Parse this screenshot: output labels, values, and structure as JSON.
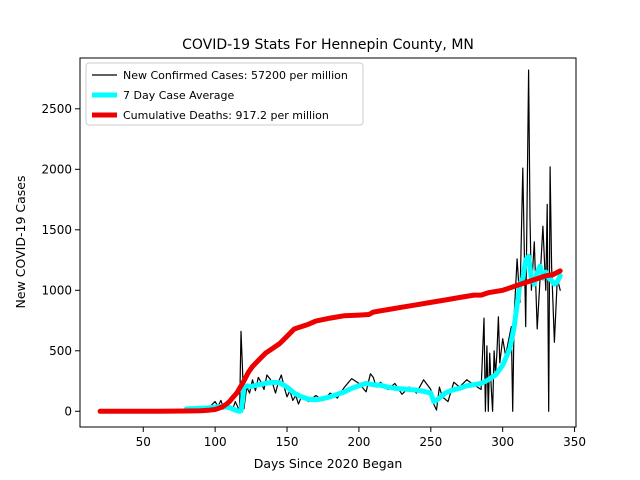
{
  "chart_data": {
    "type": "line",
    "title": "COVID-19 Stats For Hennepin County, MN",
    "xlabel": "Days Since 2020 Began",
    "ylabel": "New COVID-19 Cases",
    "xlim": [
      6,
      351
    ],
    "ylim": [
      -130,
      2920
    ],
    "xticks": [
      50,
      100,
      150,
      200,
      250,
      300,
      350
    ],
    "yticks": [
      0,
      500,
      1000,
      1500,
      2000,
      2500
    ],
    "grid": false,
    "legend_position": "top-left",
    "colors": {
      "new_cases": "#000000",
      "avg": "#00ffff",
      "deaths": "#ee0000"
    },
    "legend": [
      {
        "key": "new_cases",
        "label": "New Confirmed Cases: 57200 per million"
      },
      {
        "key": "avg",
        "label": "7 Day Case Average"
      },
      {
        "key": "deaths",
        "label": "Cumulative Deaths: 917.2 per million"
      }
    ],
    "series": [
      {
        "key": "new_cases",
        "x": [
          80,
          84,
          88,
          92,
          96,
          100,
          102,
          104,
          106,
          108,
          110,
          112,
          114,
          116,
          117,
          118,
          119,
          120,
          122,
          124,
          126,
          128,
          130,
          132,
          134,
          136,
          138,
          140,
          142,
          144,
          146,
          148,
          150,
          152,
          154,
          156,
          158,
          160,
          165,
          170,
          175,
          180,
          185,
          190,
          195,
          200,
          205,
          208,
          210,
          212,
          215,
          220,
          225,
          230,
          235,
          240,
          245,
          250,
          252,
          254,
          256,
          258,
          262,
          266,
          270,
          275,
          280,
          285,
          287,
          288,
          289,
          290,
          291,
          292,
          293,
          294,
          295,
          296,
          297,
          298,
          300,
          302,
          304,
          306,
          307,
          308,
          310,
          312,
          314,
          316,
          318,
          319,
          320,
          322,
          324,
          326,
          328,
          330,
          331,
          332,
          333,
          334,
          336,
          338,
          340
        ],
        "y": [
          20,
          18,
          22,
          30,
          35,
          80,
          40,
          90,
          20,
          60,
          30,
          10,
          80,
          30,
          0,
          660,
          350,
          20,
          200,
          150,
          260,
          170,
          280,
          240,
          180,
          300,
          270,
          230,
          150,
          240,
          300,
          200,
          120,
          170,
          90,
          130,
          60,
          120,
          80,
          130,
          90,
          150,
          110,
          200,
          270,
          230,
          160,
          310,
          280,
          200,
          240,
          180,
          230,
          140,
          200,
          150,
          260,
          180,
          60,
          10,
          200,
          120,
          80,
          240,
          200,
          260,
          220,
          180,
          770,
          0,
          540,
          0,
          480,
          200,
          0,
          500,
          300,
          480,
          780,
          400,
          600,
          460,
          580,
          700,
          0,
          800,
          1260,
          900,
          2010,
          700,
          2820,
          1600,
          1000,
          1400,
          680,
          1100,
          1530,
          1000,
          1710,
          0,
          2020,
          1200,
          570,
          1100,
          1000
        ]
      },
      {
        "key": "avg",
        "x": [
          80,
          85,
          90,
          95,
          100,
          105,
          110,
          114,
          117,
          118,
          119,
          120,
          122,
          125,
          130,
          135,
          140,
          145,
          150,
          155,
          160,
          165,
          170,
          175,
          180,
          185,
          190,
          195,
          200,
          205,
          210,
          215,
          220,
          225,
          230,
          235,
          240,
          245,
          250,
          252,
          254,
          256,
          260,
          265,
          270,
          275,
          280,
          285,
          290,
          295,
          300,
          305,
          308,
          310,
          312,
          314,
          316,
          318,
          320,
          322,
          324,
          326,
          328,
          330,
          332,
          334,
          336,
          338,
          340
        ],
        "y": [
          20,
          22,
          25,
          28,
          35,
          40,
          30,
          10,
          0,
          5,
          80,
          200,
          210,
          205,
          220,
          230,
          240,
          235,
          200,
          150,
          120,
          100,
          95,
          105,
          120,
          140,
          160,
          190,
          210,
          230,
          220,
          215,
          200,
          190,
          185,
          180,
          175,
          165,
          150,
          80,
          90,
          110,
          150,
          175,
          190,
          210,
          220,
          230,
          260,
          300,
          380,
          520,
          700,
          880,
          1050,
          1100,
          1250,
          1280,
          1100,
          1050,
          1150,
          1200,
          1100,
          1150,
          1100,
          1080,
          1050,
          1070,
          1120
        ]
      },
      {
        "key": "deaths",
        "x": [
          20,
          40,
          60,
          80,
          90,
          95,
          100,
          105,
          108,
          110,
          112,
          115,
          118,
          120,
          123,
          126,
          130,
          135,
          140,
          145,
          150,
          155,
          160,
          165,
          170,
          180,
          190,
          200,
          207,
          210,
          220,
          230,
          240,
          250,
          260,
          270,
          280,
          285,
          290,
          300,
          305,
          310,
          315,
          320,
          325,
          330,
          335,
          340
        ],
        "y": [
          0,
          0,
          0,
          2,
          4,
          8,
          15,
          35,
          60,
          80,
          110,
          150,
          210,
          250,
          320,
          370,
          420,
          480,
          520,
          560,
          620,
          680,
          700,
          720,
          745,
          770,
          790,
          795,
          800,
          820,
          840,
          860,
          880,
          900,
          920,
          940,
          960,
          960,
          980,
          1000,
          1020,
          1040,
          1060,
          1080,
          1100,
          1120,
          1130,
          1160
        ]
      }
    ]
  }
}
